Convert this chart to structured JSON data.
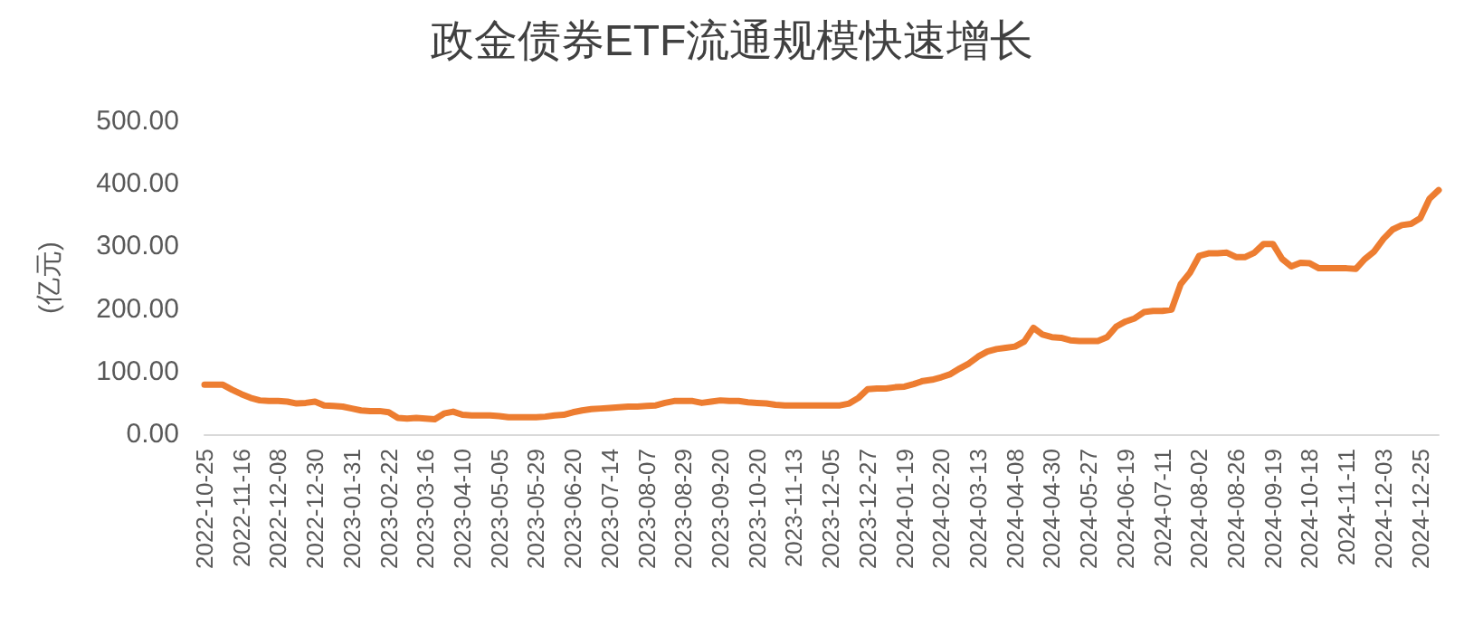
{
  "chart_data": {
    "type": "line",
    "title": "政金债券ETF流通规模快速增长",
    "ylabel": "(亿元)",
    "categories": [
      "2022-10-25",
      null,
      null,
      null,
      "2022-11-16",
      null,
      null,
      null,
      "2022-12-08",
      null,
      null,
      null,
      "2022-12-30",
      null,
      null,
      null,
      "2023-01-31",
      null,
      null,
      null,
      "2023-02-22",
      null,
      null,
      null,
      "2023-03-16",
      null,
      null,
      null,
      "2023-04-10",
      null,
      null,
      null,
      "2023-05-05",
      null,
      null,
      null,
      "2023-05-29",
      null,
      null,
      null,
      "2023-06-20",
      null,
      null,
      null,
      "2023-07-14",
      null,
      null,
      null,
      "2023-08-07",
      null,
      null,
      null,
      "2023-08-29",
      null,
      null,
      null,
      "2023-09-20",
      null,
      null,
      null,
      "2023-10-20",
      null,
      null,
      null,
      "2023-11-13",
      null,
      null,
      null,
      "2023-12-05",
      null,
      null,
      null,
      "2023-12-27",
      null,
      null,
      null,
      "2024-01-19",
      null,
      null,
      null,
      "2024-02-20",
      null,
      null,
      null,
      "2024-03-13",
      null,
      null,
      null,
      "2024-04-08",
      null,
      null,
      null,
      "2024-04-30",
      null,
      null,
      null,
      "2024-05-27",
      null,
      null,
      null,
      "2024-06-19",
      null,
      null,
      null,
      "2024-07-11",
      null,
      null,
      null,
      "2024-08-02",
      null,
      null,
      null,
      "2024-08-26",
      null,
      null,
      null,
      "2024-09-19",
      null,
      null,
      null,
      "2024-10-18",
      null,
      null,
      null,
      "2024-11-11",
      null,
      null,
      null,
      "2024-12-03",
      null,
      null,
      null,
      "2024-12-25",
      null,
      null
    ],
    "series": [
      {
        "color": "#ed7d31",
        "values": [
          79,
          79,
          79,
          71,
          64,
          58,
          54,
          53,
          53,
          52,
          49,
          50,
          52,
          46,
          45,
          44,
          41,
          38,
          37,
          37,
          35,
          26,
          25,
          26,
          25,
          24,
          33,
          36,
          31,
          30,
          30,
          30,
          29,
          27,
          27,
          27,
          27,
          28,
          30,
          31,
          35,
          38,
          40,
          41,
          42,
          43,
          44,
          44,
          45,
          46,
          50,
          53,
          53,
          53,
          50,
          52,
          54,
          53,
          53,
          51,
          50,
          49,
          47,
          46,
          46,
          46,
          46,
          46,
          46,
          46,
          49,
          58,
          72,
          73,
          73,
          75,
          76,
          80,
          85,
          87,
          91,
          96,
          105,
          113,
          124,
          132,
          136,
          138,
          140,
          148,
          170,
          159,
          155,
          154,
          150,
          149,
          149,
          149,
          155,
          172,
          180,
          185,
          195,
          197,
          197,
          199,
          240,
          258,
          285,
          289,
          289,
          290,
          283,
          283,
          290,
          304,
          304,
          280,
          268,
          274,
          273,
          265,
          265,
          265,
          265,
          264,
          280,
          292,
          312,
          327,
          334,
          336,
          345,
          376,
          390
        ]
      }
    ],
    "ylim": [
      0,
      500
    ],
    "yticks": [
      {
        "value": 0,
        "label": "0.00"
      },
      {
        "value": 100,
        "label": "100.00"
      },
      {
        "value": 200,
        "label": "200.00"
      },
      {
        "value": 300,
        "label": "300.00"
      },
      {
        "value": 400,
        "label": "400.00"
      },
      {
        "value": 500,
        "label": "500.00"
      }
    ],
    "grid": false,
    "marker": "none",
    "line_style": "solid"
  }
}
